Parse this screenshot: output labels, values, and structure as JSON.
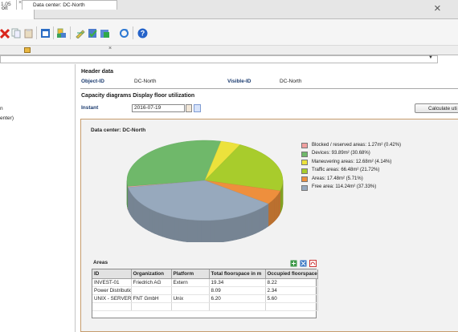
{
  "window": {
    "tab_label": "oit"
  },
  "doc_tabs": [
    {
      "label": "1.05"
    },
    {
      "label": "Data center: DC-North"
    }
  ],
  "tree": {
    "items": [
      "n",
      "enter)"
    ]
  },
  "header": {
    "title": "Header data",
    "object_id_label": "Object-ID",
    "object_id_value": "DC-North",
    "visible_id_label": "Visible-ID",
    "visible_id_value": "DC-North"
  },
  "capacity": {
    "title": "Capacity diagrams Display floor utilization",
    "instant_label": "Instant",
    "instant_value": "2016-07-19",
    "calc_button": "Calculate uti"
  },
  "chart_data": {
    "type": "pie",
    "title": "Data center: DC-North",
    "series": [
      {
        "name": "Blocked / reserved areas: 1.27m² (0.42%)",
        "value": 1.27,
        "percent": 0.42,
        "color": "#f0a0a0"
      },
      {
        "name": "Devices: 93.89m² (30.68%)",
        "value": 93.89,
        "percent": 30.68,
        "color": "#6fb86a"
      },
      {
        "name": "Maneuvering areas: 12.68m² (4.14%)",
        "value": 12.68,
        "percent": 4.14,
        "color": "#ece23c"
      },
      {
        "name": "Traffic areas: 66.48m² (21.72%)",
        "value": 66.48,
        "percent": 21.72,
        "color": "#a8cc2c"
      },
      {
        "name": "Areas: 17.48m² (5.71%)",
        "value": 17.48,
        "percent": 5.71,
        "color": "#ee8f3d"
      },
      {
        "name": "Free area: 114.24m² (37.33%)",
        "value": 114.24,
        "percent": 37.33,
        "color": "#97a9bd"
      }
    ],
    "legend_position": "right"
  },
  "areas": {
    "title": "Areas",
    "columns": [
      "ID",
      "Organization",
      "Platform",
      "Total floorspace in m",
      "Occupied floorspace"
    ],
    "rows": [
      [
        "INVEST-01",
        "Friedrich AG",
        "Extern",
        "19.34",
        "8.22"
      ],
      [
        "Power Distributio",
        "",
        "",
        "8.09",
        "2.34"
      ],
      [
        "UNIX - SERVERFA",
        "FNT GmbH",
        "Unix",
        "6.20",
        "5.60"
      ],
      [
        "",
        "",
        "",
        "",
        ""
      ],
      [
        "",
        "",
        "",
        "",
        ""
      ]
    ]
  }
}
